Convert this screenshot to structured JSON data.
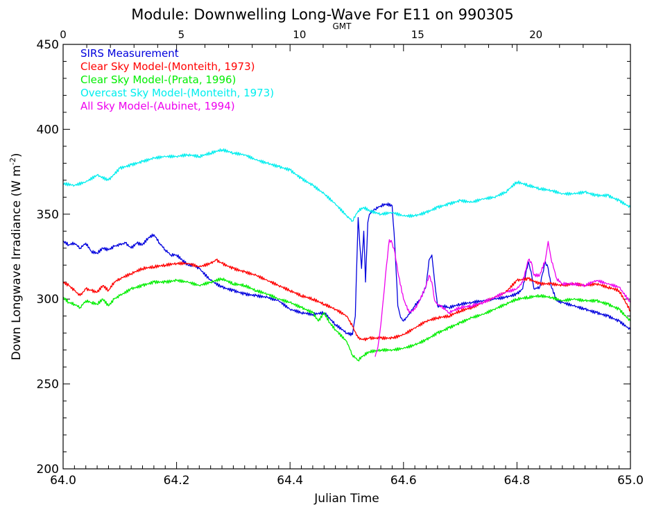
{
  "chart_data": {
    "type": "line",
    "title": "Module: Downwelling Long-Wave For E11 on 990305",
    "xlabel": "Julian Time",
    "ylabel": "Down Longwave Irradiance (W m",
    "ylabel_sup": "-2",
    "ylabel_close": ")",
    "top_axis_label": "GMT",
    "xlim": [
      64.0,
      65.0
    ],
    "ylim": [
      200,
      450
    ],
    "top_xlim": [
      0,
      24
    ],
    "x_ticks": [
      "64.0",
      "64.2",
      "64.4",
      "64.6",
      "64.8",
      "65.0"
    ],
    "y_ticks": [
      "200",
      "250",
      "300",
      "350",
      "400",
      "450"
    ],
    "top_ticks": [
      "0",
      "5",
      "10",
      "15",
      "20"
    ],
    "legend_position": "top-left",
    "grid": false,
    "series": [
      {
        "name": "SIRS Measurement",
        "color": "#0000dd",
        "x": [
          64.0,
          64.01,
          64.02,
          64.03,
          64.04,
          64.05,
          64.06,
          64.07,
          64.08,
          64.09,
          64.1,
          64.11,
          64.12,
          64.13,
          64.14,
          64.15,
          64.16,
          64.17,
          64.18,
          64.19,
          64.2,
          64.21,
          64.22,
          64.23,
          64.24,
          64.26,
          64.28,
          64.3,
          64.32,
          64.34,
          64.36,
          64.38,
          64.4,
          64.42,
          64.44,
          64.46,
          64.48,
          64.5,
          64.51,
          64.515,
          64.52,
          64.523,
          64.526,
          64.53,
          64.533,
          64.537,
          64.54,
          64.545,
          64.55,
          64.56,
          64.57,
          64.58,
          64.585,
          64.59,
          64.595,
          64.6,
          64.61,
          64.62,
          64.63,
          64.64,
          64.645,
          64.65,
          64.655,
          64.66,
          64.67,
          64.68,
          64.7,
          64.72,
          64.74,
          64.76,
          64.78,
          64.8,
          64.81,
          64.815,
          64.82,
          64.825,
          64.83,
          64.84,
          64.845,
          64.85,
          64.855,
          64.86,
          64.87,
          64.88,
          64.9,
          64.92,
          64.94,
          64.96,
          64.98,
          65.0
        ],
        "y": [
          334,
          332,
          333,
          330,
          333,
          328,
          327,
          330,
          329,
          331,
          332,
          333,
          330,
          333,
          332,
          336,
          338,
          333,
          329,
          326,
          326,
          323,
          320,
          320,
          318,
          311,
          307,
          305,
          303,
          302,
          301,
          299,
          294,
          292,
          291,
          292,
          285,
          280,
          279,
          290,
          348,
          332,
          318,
          340,
          310,
          345,
          350,
          352,
          353,
          355,
          356,
          355,
          330,
          296,
          289,
          287,
          291,
          296,
          300,
          308,
          323,
          326,
          310,
          296,
          296,
          295,
          297,
          298,
          299,
          300,
          301,
          303,
          306,
          314,
          322,
          316,
          306,
          307,
          315,
          322,
          318,
          308,
          299,
          298,
          296,
          294,
          292,
          290,
          287,
          282
        ]
      },
      {
        "name": "Clear Sky Model-(Monteith, 1973)",
        "color": "#ff0000",
        "x": [
          64.0,
          64.01,
          64.02,
          64.03,
          64.04,
          64.05,
          64.06,
          64.07,
          64.08,
          64.09,
          64.1,
          64.12,
          64.14,
          64.16,
          64.18,
          64.2,
          64.22,
          64.24,
          64.26,
          64.27,
          64.28,
          64.3,
          64.32,
          64.34,
          64.36,
          64.38,
          64.4,
          64.42,
          64.44,
          64.46,
          64.48,
          64.5,
          64.51,
          64.52,
          64.53,
          64.54,
          64.56,
          64.58,
          64.6,
          64.62,
          64.64,
          64.66,
          64.68,
          64.7,
          64.72,
          64.74,
          64.76,
          64.78,
          64.8,
          64.82,
          64.84,
          64.86,
          64.88,
          64.9,
          64.92,
          64.94,
          64.96,
          64.98,
          65.0
        ],
        "y": [
          310,
          308,
          305,
          302,
          306,
          305,
          304,
          308,
          305,
          310,
          312,
          315,
          318,
          319,
          320,
          321,
          321,
          319,
          321,
          323,
          321,
          318,
          316,
          314,
          311,
          308,
          305,
          302,
          300,
          297,
          294,
          290,
          284,
          277,
          276,
          277,
          277,
          277,
          279,
          283,
          287,
          289,
          290,
          293,
          295,
          298,
          301,
          304,
          311,
          312,
          309,
          309,
          308,
          309,
          308,
          309,
          307,
          305,
          293
        ]
      },
      {
        "name": "Clear Sky Model-(Prata, 1996)",
        "color": "#00ee00",
        "x": [
          64.0,
          64.01,
          64.02,
          64.03,
          64.04,
          64.05,
          64.06,
          64.07,
          64.08,
          64.09,
          64.1,
          64.12,
          64.14,
          64.16,
          64.18,
          64.2,
          64.22,
          64.24,
          64.26,
          64.28,
          64.3,
          64.32,
          64.34,
          64.36,
          64.38,
          64.4,
          64.42,
          64.44,
          64.45,
          64.46,
          64.47,
          64.48,
          64.5,
          64.51,
          64.52,
          64.53,
          64.54,
          64.56,
          64.58,
          64.6,
          64.62,
          64.64,
          64.66,
          64.68,
          64.7,
          64.72,
          64.74,
          64.76,
          64.78,
          64.8,
          64.82,
          64.84,
          64.86,
          64.88,
          64.9,
          64.92,
          64.94,
          64.96,
          64.98,
          65.0
        ],
        "y": [
          301,
          298,
          297,
          295,
          299,
          298,
          297,
          300,
          296,
          300,
          302,
          306,
          308,
          310,
          310,
          311,
          310,
          308,
          310,
          312,
          309,
          308,
          305,
          303,
          300,
          298,
          295,
          292,
          287,
          292,
          286,
          282,
          275,
          267,
          264,
          267,
          269,
          270,
          270,
          271,
          273,
          276,
          280,
          283,
          286,
          289,
          291,
          294,
          297,
          300,
          301,
          302,
          301,
          299,
          300,
          299,
          299,
          297,
          294,
          287
        ]
      },
      {
        "name": "Overcast Sky Model-(Monteith, 1973)",
        "color": "#00eeee",
        "x": [
          64.0,
          64.02,
          64.04,
          64.06,
          64.08,
          64.1,
          64.12,
          64.14,
          64.16,
          64.18,
          64.2,
          64.22,
          64.24,
          64.26,
          64.28,
          64.3,
          64.32,
          64.34,
          64.36,
          64.38,
          64.4,
          64.42,
          64.44,
          64.46,
          64.48,
          64.5,
          64.51,
          64.52,
          64.53,
          64.54,
          64.56,
          64.58,
          64.6,
          64.62,
          64.64,
          64.66,
          64.68,
          64.7,
          64.72,
          64.74,
          64.76,
          64.78,
          64.8,
          64.82,
          64.84,
          64.86,
          64.88,
          64.9,
          64.92,
          64.94,
          64.96,
          64.98,
          65.0
        ],
        "y": [
          368,
          367,
          369,
          373,
          370,
          377,
          379,
          381,
          383,
          384,
          384,
          385,
          384,
          386,
          388,
          386,
          385,
          382,
          380,
          378,
          376,
          371,
          367,
          362,
          356,
          349,
          346,
          352,
          354,
          352,
          350,
          351,
          349,
          349,
          351,
          354,
          356,
          358,
          357,
          359,
          360,
          363,
          369,
          367,
          365,
          364,
          362,
          362,
          363,
          361,
          361,
          358,
          354
        ]
      },
      {
        "name": "All Sky Model-(Aubinet, 1994)",
        "color": "#ee00ee",
        "x": [
          64.55,
          64.555,
          64.56,
          64.565,
          64.57,
          64.575,
          64.58,
          64.585,
          64.59,
          64.6,
          64.61,
          64.62,
          64.63,
          64.64,
          64.645,
          64.65,
          64.655,
          64.66,
          64.67,
          64.68,
          64.7,
          64.72,
          64.74,
          64.76,
          64.78,
          64.8,
          64.81,
          64.82,
          64.825,
          64.83,
          64.84,
          64.85,
          64.855,
          64.86,
          64.87,
          64.88,
          64.9,
          64.92,
          64.94,
          64.96,
          64.98,
          65.0
        ],
        "y": [
          266,
          272,
          285,
          302,
          320,
          335,
          333,
          327,
          316,
          300,
          292,
          294,
          300,
          308,
          314,
          310,
          299,
          297,
          295,
          292,
          295,
          296,
          298,
          301,
          304,
          306,
          310,
          323,
          322,
          314,
          314,
          323,
          334,
          324,
          312,
          309,
          309,
          308,
          311,
          309,
          307,
          298
        ]
      }
    ]
  }
}
